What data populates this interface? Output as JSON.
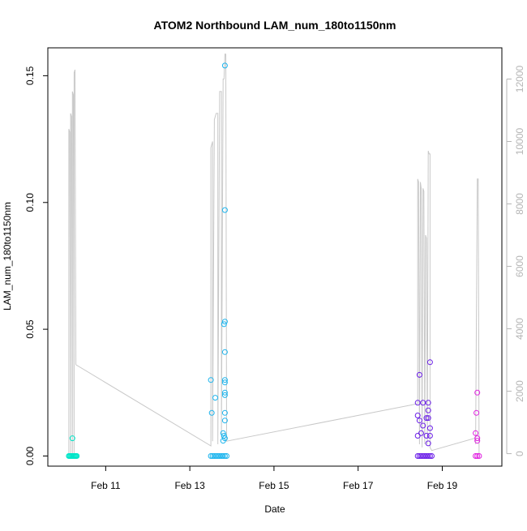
{
  "chart_data": {
    "type": "scatter",
    "title": "ATOM2 Northbound LAM_num_180to1150nm",
    "xlabel": "Date",
    "ylabel": "LAM_num_180to1150nm",
    "xlim": [
      "2025-02-09 15:00",
      "2025-02-20 10:00"
    ],
    "ylim": [
      -0.004,
      0.161
    ],
    "y2lim": [
      -400,
      13000
    ],
    "xticks": [
      "2025-02-11 00:00",
      "2025-02-13 00:00",
      "2025-02-15 00:00",
      "2025-02-17 00:00",
      "2025-02-19 00:00"
    ],
    "xtick_labels": [
      "Feb 11",
      "Feb 13",
      "Feb 15",
      "Feb 17",
      "Feb 19"
    ],
    "yticks": [
      0.0,
      0.05,
      0.1,
      0.15
    ],
    "ytick_labels": [
      "0.00",
      "0.05",
      "0.10",
      "0.15"
    ],
    "y2ticks": [
      0,
      2000,
      4000,
      6000,
      8000,
      10000,
      12000
    ],
    "y2tick_labels": [
      "0",
      "2000",
      "4000",
      "6000",
      "8000",
      "10000",
      "12000"
    ],
    "grid": false,
    "series": [
      {
        "color": "#00e5c8",
        "points": [
          [
            "2025-02-10 03:00",
            0
          ],
          [
            "2025-02-10 03:30",
            0
          ],
          [
            "2025-02-10 04:00",
            0
          ],
          [
            "2025-02-10 04:30",
            0
          ],
          [
            "2025-02-10 05:00",
            0
          ],
          [
            "2025-02-10 05:30",
            0
          ],
          [
            "2025-02-10 06:00",
            0
          ],
          [
            "2025-02-10 06:30",
            0
          ],
          [
            "2025-02-10 07:00",
            0
          ],
          [
            "2025-02-10 07:30",
            0
          ],
          [
            "2025-02-10 05:00",
            0.007
          ]
        ]
      },
      {
        "color": "#1ab4ee",
        "points": [
          [
            "2025-02-13 12:00",
            0
          ],
          [
            "2025-02-13 13:00",
            0
          ],
          [
            "2025-02-13 14:00",
            0
          ],
          [
            "2025-02-13 15:00",
            0
          ],
          [
            "2025-02-13 16:00",
            0
          ],
          [
            "2025-02-13 17:00",
            0
          ],
          [
            "2025-02-13 18:00",
            0
          ],
          [
            "2025-02-13 19:00",
            0
          ],
          [
            "2025-02-13 20:00",
            0
          ],
          [
            "2025-02-13 21:00",
            0
          ],
          [
            "2025-02-13 12:00",
            0.03
          ],
          [
            "2025-02-13 12:30",
            0.017
          ],
          [
            "2025-02-13 14:30",
            0.023
          ],
          [
            "2025-02-13 19:00",
            0.009
          ],
          [
            "2025-02-13 19:00",
            0.006
          ],
          [
            "2025-02-13 19:30",
            0.052
          ],
          [
            "2025-02-13 19:30",
            0.008
          ],
          [
            "2025-02-13 20:00",
            0.154
          ],
          [
            "2025-02-13 20:00",
            0.097
          ],
          [
            "2025-02-13 20:00",
            0.053
          ],
          [
            "2025-02-13 20:00",
            0.041
          ],
          [
            "2025-02-13 20:00",
            0.03
          ],
          [
            "2025-02-13 20:00",
            0.029
          ],
          [
            "2025-02-13 20:00",
            0.025
          ],
          [
            "2025-02-13 20:00",
            0.024
          ],
          [
            "2025-02-13 20:00",
            0.017
          ],
          [
            "2025-02-13 20:00",
            0.014
          ],
          [
            "2025-02-13 20:00",
            0.007
          ]
        ]
      },
      {
        "color": "#6b1ee8",
        "points": [
          [
            "2025-02-18 10:00",
            0
          ],
          [
            "2025-02-18 11:00",
            0
          ],
          [
            "2025-02-18 12:00",
            0
          ],
          [
            "2025-02-18 13:00",
            0
          ],
          [
            "2025-02-18 14:00",
            0
          ],
          [
            "2025-02-18 15:00",
            0
          ],
          [
            "2025-02-18 16:00",
            0
          ],
          [
            "2025-02-18 17:00",
            0
          ],
          [
            "2025-02-18 18:00",
            0
          ],
          [
            "2025-02-18 10:00",
            0.021
          ],
          [
            "2025-02-18 10:00",
            0.016
          ],
          [
            "2025-02-18 10:00",
            0.008
          ],
          [
            "2025-02-18 11:00",
            0.032
          ],
          [
            "2025-02-18 11:00",
            0.014
          ],
          [
            "2025-02-18 12:00",
            0.009
          ],
          [
            "2025-02-18 13:00",
            0.021
          ],
          [
            "2025-02-18 13:00",
            0.012
          ],
          [
            "2025-02-18 15:00",
            0.015
          ],
          [
            "2025-02-18 15:00",
            0.008
          ],
          [
            "2025-02-18 16:00",
            0.021
          ],
          [
            "2025-02-18 16:00",
            0.018
          ],
          [
            "2025-02-18 16:00",
            0.015
          ],
          [
            "2025-02-18 17:00",
            0.037
          ],
          [
            "2025-02-18 17:00",
            0.011
          ],
          [
            "2025-02-18 17:00",
            0.008
          ],
          [
            "2025-02-18 16:00",
            0.005
          ]
        ]
      },
      {
        "color": "#e020e0",
        "points": [
          [
            "2025-02-19 19:00",
            0
          ],
          [
            "2025-02-19 20:00",
            0
          ],
          [
            "2025-02-19 21:00",
            0
          ],
          [
            "2025-02-19 20:00",
            0.025
          ],
          [
            "2025-02-19 19:30",
            0.017
          ],
          [
            "2025-02-19 19:00",
            0.009
          ],
          [
            "2025-02-19 20:00",
            0.007
          ],
          [
            "2025-02-19 20:00",
            0.006
          ]
        ]
      }
    ],
    "background_line": {
      "axis": "right",
      "color": "#c8c8c8",
      "points": [
        [
          "2025-02-10 03:00",
          0
        ],
        [
          "2025-02-10 03:00",
          10400
        ],
        [
          "2025-02-10 03:30",
          10300
        ],
        [
          "2025-02-10 04:00",
          0
        ],
        [
          "2025-02-10 04:00",
          10900
        ],
        [
          "2025-02-10 04:30",
          10800
        ],
        [
          "2025-02-10 05:00",
          0
        ],
        [
          "2025-02-10 05:00",
          11600
        ],
        [
          "2025-02-10 05:30",
          11500
        ],
        [
          "2025-02-10 06:00",
          0
        ],
        [
          "2025-02-10 06:00",
          12200
        ],
        [
          "2025-02-10 06:30",
          12300
        ],
        [
          "2025-02-10 07:00",
          2850
        ],
        [
          "2025-02-13 12:00",
          250
        ],
        [
          "2025-02-13 12:00",
          9800
        ],
        [
          "2025-02-13 13:00",
          10000
        ],
        [
          "2025-02-13 13:00",
          400
        ],
        [
          "2025-02-13 14:00",
          10700
        ],
        [
          "2025-02-13 15:00",
          10900
        ],
        [
          "2025-02-13 16:00",
          10900
        ],
        [
          "2025-02-13 16:00",
          300
        ],
        [
          "2025-02-13 17:00",
          11600
        ],
        [
          "2025-02-13 18:00",
          11600
        ],
        [
          "2025-02-13 18:00",
          500
        ],
        [
          "2025-02-13 19:00",
          12000
        ],
        [
          "2025-02-13 19:30",
          12000
        ],
        [
          "2025-02-13 20:00",
          12800
        ],
        [
          "2025-02-13 20:30",
          12800
        ],
        [
          "2025-02-13 21:00",
          400
        ],
        [
          "2025-02-18 10:00",
          1600
        ],
        [
          "2025-02-18 10:00",
          8800
        ],
        [
          "2025-02-18 10:30",
          8700
        ],
        [
          "2025-02-18 11:00",
          300
        ],
        [
          "2025-02-18 11:30",
          8700
        ],
        [
          "2025-02-18 12:00",
          8500
        ],
        [
          "2025-02-18 12:30",
          200
        ],
        [
          "2025-02-18 13:00",
          8500
        ],
        [
          "2025-02-18 13:30",
          8400
        ],
        [
          "2025-02-18 14:00",
          300
        ],
        [
          "2025-02-18 14:30",
          7000
        ],
        [
          "2025-02-18 15:00",
          6900
        ],
        [
          "2025-02-18 15:30",
          300
        ],
        [
          "2025-02-18 16:00",
          9700
        ],
        [
          "2025-02-18 16:30",
          9600
        ],
        [
          "2025-02-18 17:00",
          9600
        ],
        [
          "2025-02-18 17:00",
          200
        ],
        [
          "2025-02-18 18:00",
          100
        ],
        [
          "2025-02-19 19:00",
          500
        ],
        [
          "2025-02-19 19:00",
          300
        ],
        [
          "2025-02-19 20:00",
          8800
        ],
        [
          "2025-02-19 20:30",
          8800
        ],
        [
          "2025-02-19 21:00",
          0
        ]
      ]
    }
  }
}
